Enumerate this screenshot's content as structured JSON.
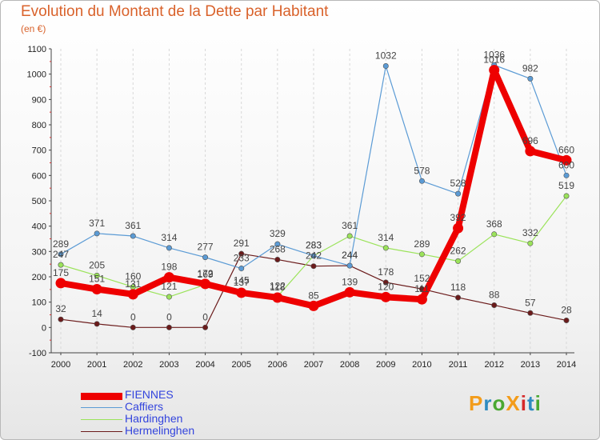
{
  "title": "Evolution du Montant de la Dette par Habitant",
  "subtitle": "(en €)",
  "logo": {
    "text": "ProXiti",
    "colors": [
      "#f39c1a",
      "#2e8bc0",
      "#4aa832",
      "#f39c1a",
      "#d62a2a",
      "#2e8bc0",
      "#4aa832"
    ]
  },
  "chart_data": {
    "type": "line",
    "x": [
      "2000",
      "2001",
      "2002",
      "2003",
      "2004",
      "2005",
      "2006",
      "2007",
      "2008",
      "2009",
      "2010",
      "2011",
      "2012",
      "2013",
      "2014"
    ],
    "ylim": [
      -100,
      1100
    ],
    "yticks": [
      -100,
      0,
      100,
      200,
      300,
      400,
      500,
      600,
      700,
      800,
      900,
      1000,
      1100
    ],
    "grid": "vertical dashed",
    "legend_position": "bottom-left",
    "series": [
      {
        "name": "Hermelinghen",
        "color": "#6b1b1b",
        "values": [
          32,
          14,
          0,
          0,
          0,
          291,
          268,
          242,
          244,
          178,
          152,
          118,
          88,
          57,
          28
        ]
      },
      {
        "name": "Hardinghen",
        "color": "#9be35a",
        "values": [
          247,
          205,
          160,
          121,
          169,
          145,
          122,
          283,
          361,
          314,
          289,
          262,
          368,
          332,
          519
        ]
      },
      {
        "name": "Caffiers",
        "color": "#5b9bd5",
        "values": [
          289,
          371,
          361,
          314,
          277,
          233,
          329,
          283,
          244,
          1032,
          578,
          528,
          1036,
          982,
          600
        ]
      },
      {
        "name": "FIENNES",
        "color": "#ee0000",
        "values": [
          175,
          151,
          131,
          198,
          172,
          137,
          118,
          85,
          139,
          120,
          111,
          392,
          1016,
          696,
          660
        ]
      }
    ]
  },
  "legend": [
    "FIENNES",
    "Caffiers",
    "Hardinghen",
    "Hermelinghen"
  ],
  "legend_colors": [
    "#ee0000",
    "#5b9bd5",
    "#9be35a",
    "#6b1b1b"
  ]
}
